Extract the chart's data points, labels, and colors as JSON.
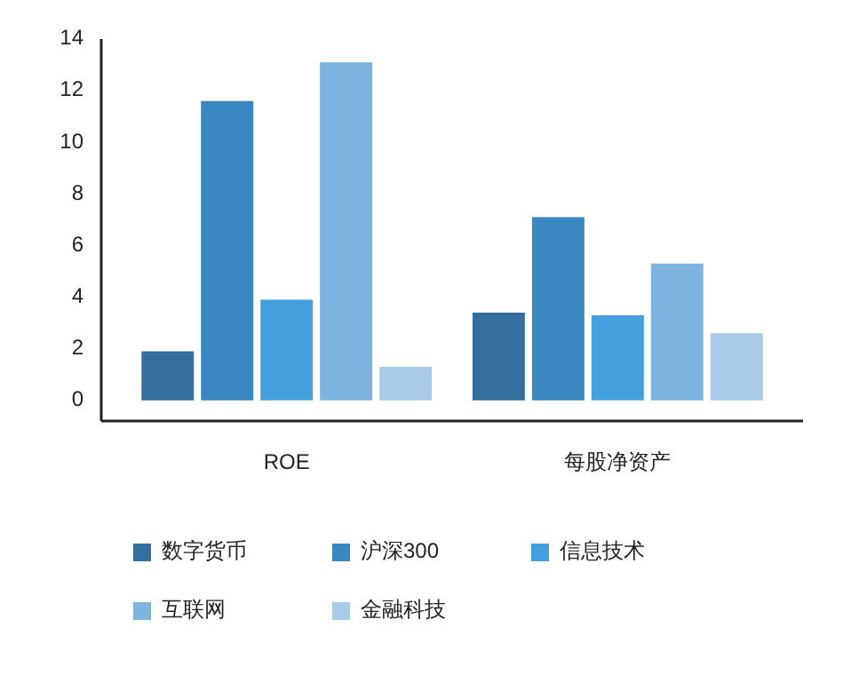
{
  "chart_data": {
    "type": "bar",
    "categories": [
      "ROE",
      "每股净资产"
    ],
    "series": [
      {
        "name": "数字货币",
        "color": "#336e9f",
        "values": [
          1.9,
          3.4
        ]
      },
      {
        "name": "沪深300",
        "color": "#3a87c2",
        "values": [
          11.6,
          7.1
        ]
      },
      {
        "name": "信息技术",
        "color": "#459fdc",
        "values": [
          3.9,
          3.3
        ]
      },
      {
        "name": "互联网",
        "color": "#7db5e0",
        "values": [
          13.1,
          5.3
        ]
      },
      {
        "name": "金融科技",
        "color": "#a9cbe8",
        "values": [
          1.3,
          2.6
        ]
      }
    ],
    "ylim": [
      -0.8,
      14
    ],
    "yticks": [
      0,
      2,
      4,
      6,
      8,
      10,
      12,
      14
    ],
    "grid": false,
    "legend": "bottom"
  }
}
